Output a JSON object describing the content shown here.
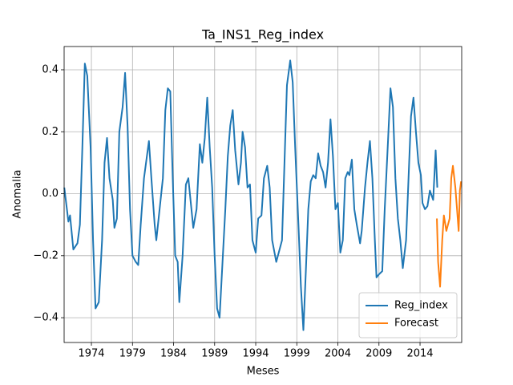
{
  "chart_data": {
    "type": "line",
    "title": "Ta_INS1_Reg_index",
    "xlabel": "Meses",
    "ylabel": "Anomalia",
    "xlim": [
      1970.68,
      2019.07
    ],
    "ylim": [
      -0.48,
      0.475
    ],
    "xticks": [
      1974,
      1979,
      1984,
      1989,
      1994,
      1999,
      2004,
      2009,
      2014
    ],
    "yticks": [
      {
        "value": -0.4,
        "label": "−0.4"
      },
      {
        "value": -0.2,
        "label": "−0.2"
      },
      {
        "value": 0,
        "label": "0.0"
      },
      0.2,
      0.4
    ],
    "grid": true,
    "legend": "lower right",
    "series": [
      {
        "name": "Reg_index",
        "color": "#1f77b4",
        "x": [
          1970.7,
          1971.2,
          1971.4,
          1971.8,
          1972.3,
          1972.6,
          1972.9,
          1973.2,
          1973.5,
          1973.9,
          1974.2,
          1974.5,
          1974.9,
          1975.3,
          1975.6,
          1975.9,
          1976.2,
          1976.6,
          1976.8,
          1977.1,
          1977.4,
          1977.8,
          1978.1,
          1978.4,
          1978.7,
          1979.0,
          1979.4,
          1979.7,
          1980.0,
          1980.4,
          1980.7,
          1981.0,
          1981.3,
          1981.7,
          1981.9,
          1982.3,
          1982.7,
          1983.0,
          1983.3,
          1983.6,
          1983.9,
          1984.2,
          1984.5,
          1984.7,
          1985.1,
          1985.5,
          1985.8,
          1986.1,
          1986.4,
          1986.8,
          1987.2,
          1987.5,
          1987.8,
          1988.1,
          1988.4,
          1988.7,
          1989.0,
          1989.3,
          1989.6,
          1989.9,
          1990.3,
          1990.6,
          1990.9,
          1991.2,
          1991.5,
          1991.9,
          1992.2,
          1992.4,
          1992.7,
          1993.0,
          1993.3,
          1993.6,
          1994.0,
          1994.3,
          1994.7,
          1995.0,
          1995.4,
          1995.7,
          1996.0,
          1996.5,
          1996.9,
          1997.2,
          1997.5,
          1997.8,
          1998.2,
          1998.5,
          1998.8,
          1999.2,
          1999.5,
          1999.8,
          2000.1,
          2000.4,
          2000.7,
          2001.0,
          2001.3,
          2001.6,
          2001.9,
          2002.2,
          2002.5,
          2002.8,
          2003.1,
          2003.4,
          2003.7,
          2004.0,
          2004.3,
          2004.6,
          2004.9,
          2005.2,
          2005.4,
          2005.7,
          2006.0,
          2006.3,
          2006.7,
          2006.9,
          2007.3,
          2007.6,
          2007.9,
          2008.2,
          2008.5,
          2008.7,
          2009.0,
          2009.4,
          2009.7,
          2010.1,
          2010.4,
          2010.7,
          2011.0,
          2011.3,
          2011.6,
          2011.9,
          2012.3,
          2012.6,
          2012.9,
          2013.2,
          2013.5,
          2013.8,
          2014.1,
          2014.3,
          2014.6,
          2014.9,
          2015.2,
          2015.6,
          2015.9,
          2016.1
        ],
        "values": [
          0.02,
          -0.09,
          -0.07,
          -0.18,
          -0.16,
          -0.1,
          0.15,
          0.42,
          0.38,
          0.15,
          -0.15,
          -0.37,
          -0.35,
          -0.15,
          0.1,
          0.18,
          0.05,
          -0.02,
          -0.11,
          -0.08,
          0.2,
          0.28,
          0.39,
          0.22,
          -0.05,
          -0.2,
          -0.22,
          -0.23,
          -0.1,
          0.05,
          0.11,
          0.17,
          0.05,
          -0.1,
          -0.15,
          -0.05,
          0.05,
          0.27,
          0.34,
          0.33,
          0.05,
          -0.2,
          -0.22,
          -0.35,
          -0.2,
          0.03,
          0.05,
          -0.03,
          -0.11,
          -0.05,
          0.16,
          0.1,
          0.18,
          0.31,
          0.15,
          0.02,
          -0.2,
          -0.37,
          -0.4,
          -0.25,
          -0.05,
          0.12,
          0.22,
          0.27,
          0.14,
          0.03,
          0.1,
          0.2,
          0.15,
          0.02,
          0.03,
          -0.15,
          -0.19,
          -0.08,
          -0.07,
          0.05,
          0.09,
          0.02,
          -0.15,
          -0.22,
          -0.18,
          -0.15,
          0.1,
          0.35,
          0.43,
          0.36,
          0.15,
          -0.1,
          -0.3,
          -0.44,
          -0.25,
          -0.05,
          0.04,
          0.06,
          0.05,
          0.13,
          0.09,
          0.07,
          0.02,
          0.1,
          0.24,
          0.12,
          -0.05,
          -0.03,
          -0.19,
          -0.15,
          0.05,
          0.07,
          0.06,
          0.11,
          -0.05,
          -0.1,
          -0.16,
          -0.12,
          0.02,
          0.1,
          0.17,
          0.05,
          -0.15,
          -0.27,
          -0.26,
          -0.25,
          -0.05,
          0.17,
          0.34,
          0.28,
          0.05,
          -0.08,
          -0.15,
          -0.24,
          -0.15,
          0.05,
          0.25,
          0.31,
          0.2,
          0.1,
          0.06,
          -0.03,
          -0.05,
          -0.04,
          0.01,
          -0.02,
          0.14,
          0.02
        ]
      },
      {
        "name": "Forecast",
        "color": "#ff7f0e",
        "x": [
          2016.05,
          2016.2,
          2016.44,
          2016.7,
          2016.9,
          2017.2,
          2017.6,
          2017.8,
          2018.0,
          2018.3,
          2018.5,
          2018.7,
          2018.85,
          2019.0
        ],
        "values": [
          -0.08,
          -0.22,
          -0.3,
          -0.15,
          -0.07,
          -0.12,
          -0.08,
          0.05,
          0.09,
          0.02,
          -0.05,
          -0.12,
          0.01,
          0.04
        ]
      }
    ]
  }
}
